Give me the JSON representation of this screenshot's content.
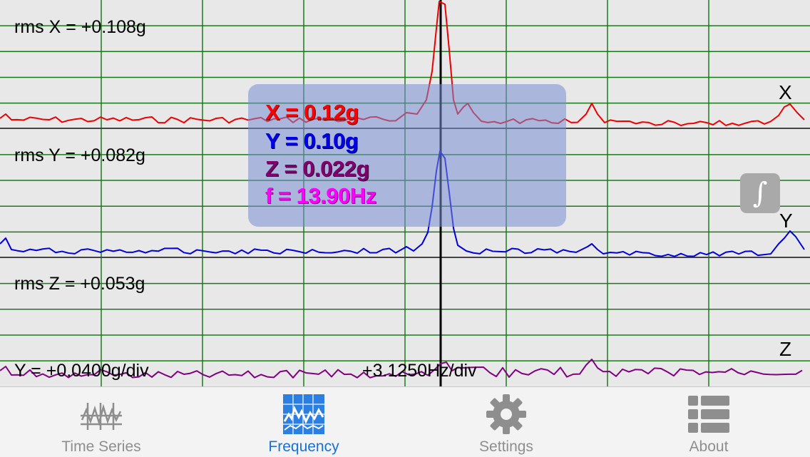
{
  "plot": {
    "rms_x": "rms X = +0.108g",
    "rms_y": "rms Y = +0.082g",
    "rms_z": "rms Z = +0.053g",
    "y_scale": "Y = +0.0400g/div",
    "x_scale": "+3.1250Hz/div",
    "label_x": "X",
    "label_y": "Y",
    "label_z": "Z",
    "colors": {
      "x": "#ee0000",
      "y": "#0000dd",
      "z": "#800080",
      "grid": "#1a7a1a",
      "baseline": "#444444"
    }
  },
  "readout": {
    "x": "X = 0.12g",
    "y": "Y = 0.10g",
    "z": "Z = 0.022g",
    "f": "f = 13.90Hz",
    "colors": {
      "x": "#ff0000",
      "y": "#0000ee",
      "z": "#800070",
      "f": "#ff00ff"
    }
  },
  "integrate_button": {
    "icon": "integral-icon",
    "glyph": "∫"
  },
  "tabs": [
    {
      "label": "Time Series",
      "icon": "time-series-icon",
      "active": false
    },
    {
      "label": "Frequency",
      "icon": "frequency-icon",
      "active": true
    },
    {
      "label": "Settings",
      "icon": "gear-icon",
      "active": false
    },
    {
      "label": "About",
      "icon": "list-icon",
      "active": false
    }
  ]
}
